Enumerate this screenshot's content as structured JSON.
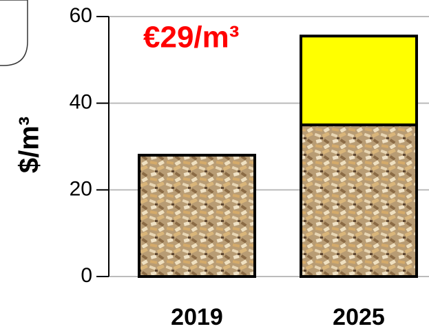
{
  "chart_data": {
    "type": "stacked_bar",
    "y_label": "$/m³",
    "annotation": "€29/m³",
    "categories": [
      "2019",
      "2025"
    ],
    "series": [
      {
        "color": "#c9a878",
        "values": [
          28,
          35
        ]
      },
      {
        "color": "#ffff00",
        "values": [
          null,
          20.5
        ]
      }
    ],
    "ylim": [
      0,
      60
    ],
    "yticks": [
      0,
      20,
      40,
      60
    ],
    "grid": true
  }
}
